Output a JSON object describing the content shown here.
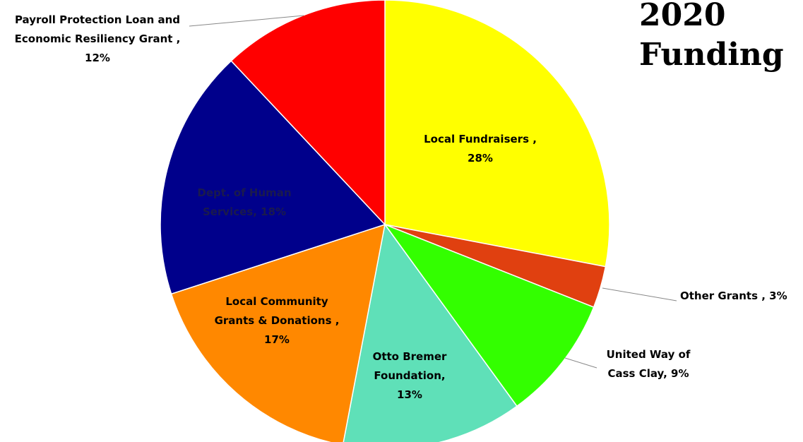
{
  "title": {
    "line1": "2020",
    "line2": "Funding"
  },
  "chart_data": {
    "type": "pie",
    "title": "2020 Funding",
    "start": "top, clockwise",
    "slices": [
      {
        "label_lines": [
          "Local Fundraisers ,",
          "28%"
        ],
        "name": "Local Fundraisers",
        "value": 28,
        "color": "#ffff00"
      },
      {
        "label_lines": [
          "Other Grants , 3%"
        ],
        "name": "Other Grants",
        "value": 3,
        "color": "#e04010"
      },
      {
        "label_lines": [
          "United Way of",
          "Cass Clay, 9%"
        ],
        "name": "United Way of Cass Clay",
        "value": 9,
        "color": "#33ff00"
      },
      {
        "label_lines": [
          "Otto Bremer",
          "Foundation,",
          "13%"
        ],
        "name": "Otto Bremer Foundation",
        "value": 13,
        "color": "#5fe0b8"
      },
      {
        "label_lines": [
          "Local Community",
          "Grants & Donations ,",
          "17%"
        ],
        "name": "Local Community Grants & Donations",
        "value": 17,
        "color": "#ff8800"
      },
      {
        "label_lines": [
          "Dept. of Human",
          "Services, 18%"
        ],
        "name": "Dept. of Human Services",
        "value": 18,
        "color": "#00008b"
      },
      {
        "label_lines": [
          "Payroll Protection Loan and",
          "Economic Resiliency Grant ,",
          "12%"
        ],
        "name": "Payroll Protection Loan and Economic Resiliency Grant",
        "value": 12,
        "color": "#ff0000"
      }
    ]
  }
}
